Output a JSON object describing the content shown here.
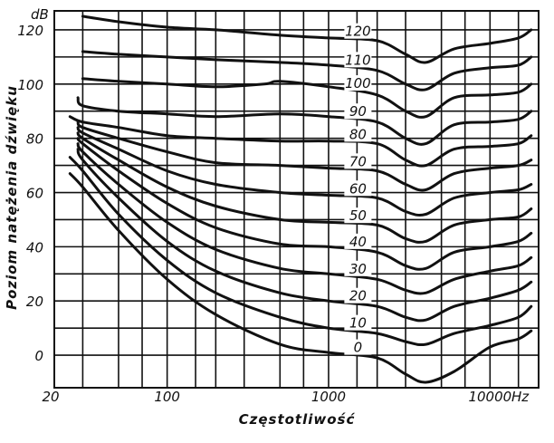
{
  "chart_data": {
    "type": "line",
    "xlabel": "Częstotliwość",
    "ylabel": "Poziom natężenia dźwięku",
    "x_unit": "Hz",
    "y_unit": "dB",
    "x_scale": "log",
    "xlim": [
      20,
      20000
    ],
    "ylim": [
      -12,
      127
    ],
    "grid": true,
    "x_ticks": [
      {
        "value": 20,
        "label": "20"
      },
      {
        "value": 100,
        "label": "100"
      },
      {
        "value": 1000,
        "label": "1000"
      },
      {
        "value": 10000,
        "label": "10000"
      }
    ],
    "x_gridlines": [
      20,
      30,
      50,
      70,
      100,
      150,
      200,
      300,
      500,
      700,
      1000,
      1500,
      2000,
      3000,
      5000,
      7000,
      10000,
      15000,
      20000
    ],
    "y_ticks": [
      {
        "value": 0,
        "label": "0"
      },
      {
        "value": 20,
        "label": "20"
      },
      {
        "value": 40,
        "label": "40"
      },
      {
        "value": 60,
        "label": "60"
      },
      {
        "value": 80,
        "label": "80"
      },
      {
        "value": 100,
        "label": "100"
      },
      {
        "value": 120,
        "label": "120"
      }
    ],
    "y_gridlines": [
      0,
      10,
      20,
      30,
      40,
      50,
      60,
      70,
      80,
      90,
      100,
      110,
      120
    ],
    "series": [
      {
        "name": "120",
        "label_at": 1500,
        "points": [
          [
            30,
            125
          ],
          [
            50,
            123
          ],
          [
            100,
            121
          ],
          [
            200,
            120
          ],
          [
            500,
            118
          ],
          [
            1000,
            117
          ],
          [
            2000,
            116
          ],
          [
            3000,
            111
          ],
          [
            4000,
            108
          ],
          [
            6000,
            113
          ],
          [
            10000,
            115
          ],
          [
            15000,
            117
          ],
          [
            18000,
            120
          ]
        ]
      },
      {
        "name": "110",
        "label_at": 1500,
        "points": [
          [
            30,
            112
          ],
          [
            50,
            111
          ],
          [
            100,
            110
          ],
          [
            200,
            109
          ],
          [
            500,
            108
          ],
          [
            1000,
            107
          ],
          [
            2000,
            105
          ],
          [
            3000,
            100
          ],
          [
            4000,
            98
          ],
          [
            6000,
            104
          ],
          [
            10000,
            106
          ],
          [
            15000,
            107
          ],
          [
            18000,
            110
          ]
        ]
      },
      {
        "name": "100",
        "label_at": 1500,
        "points": [
          [
            30,
            102
          ],
          [
            50,
            101
          ],
          [
            100,
            100
          ],
          [
            200,
            99
          ],
          [
            400,
            100
          ],
          [
            500,
            101
          ],
          [
            1000,
            99
          ],
          [
            2000,
            96
          ],
          [
            3000,
            90
          ],
          [
            4000,
            88
          ],
          [
            6000,
            95
          ],
          [
            10000,
            96
          ],
          [
            15000,
            97
          ],
          [
            18000,
            100
          ]
        ]
      },
      {
        "name": "90",
        "label_at": 1500,
        "points": [
          [
            28,
            95
          ],
          [
            30,
            92
          ],
          [
            50,
            90
          ],
          [
            100,
            89
          ],
          [
            200,
            88
          ],
          [
            500,
            89
          ],
          [
            1000,
            88
          ],
          [
            2000,
            86
          ],
          [
            3000,
            80
          ],
          [
            4000,
            78
          ],
          [
            6000,
            85
          ],
          [
            10000,
            86
          ],
          [
            15000,
            87
          ],
          [
            18000,
            90
          ]
        ]
      },
      {
        "name": "80",
        "label_at": 1500,
        "points": [
          [
            25,
            88
          ],
          [
            30,
            86
          ],
          [
            50,
            84
          ],
          [
            100,
            81
          ],
          [
            200,
            80
          ],
          [
            500,
            79
          ],
          [
            1000,
            79
          ],
          [
            2000,
            78
          ],
          [
            3000,
            72
          ],
          [
            4000,
            70
          ],
          [
            6000,
            76
          ],
          [
            10000,
            77
          ],
          [
            15000,
            78
          ],
          [
            18000,
            81
          ]
        ]
      },
      {
        "name": "70",
        "label_at": 1500,
        "points": [
          [
            28,
            86
          ],
          [
            30,
            84
          ],
          [
            50,
            80
          ],
          [
            100,
            75
          ],
          [
            200,
            71
          ],
          [
            500,
            70
          ],
          [
            1000,
            69
          ],
          [
            2000,
            68
          ],
          [
            3000,
            63
          ],
          [
            4000,
            61
          ],
          [
            6000,
            67
          ],
          [
            10000,
            69
          ],
          [
            15000,
            70
          ],
          [
            18000,
            72
          ]
        ]
      },
      {
        "name": "60",
        "label_at": 1500,
        "points": [
          [
            28,
            84
          ],
          [
            30,
            82
          ],
          [
            50,
            76
          ],
          [
            100,
            68
          ],
          [
            200,
            63
          ],
          [
            500,
            60
          ],
          [
            1000,
            59
          ],
          [
            2000,
            58
          ],
          [
            3000,
            53
          ],
          [
            4000,
            52
          ],
          [
            6000,
            58
          ],
          [
            10000,
            60
          ],
          [
            15000,
            61
          ],
          [
            18000,
            63
          ]
        ]
      },
      {
        "name": "50",
        "label_at": 1500,
        "points": [
          [
            28,
            82
          ],
          [
            30,
            80
          ],
          [
            50,
            72
          ],
          [
            100,
            62
          ],
          [
            200,
            55
          ],
          [
            500,
            50
          ],
          [
            1000,
            49
          ],
          [
            2000,
            48
          ],
          [
            3000,
            43
          ],
          [
            4000,
            42
          ],
          [
            6000,
            48
          ],
          [
            10000,
            50
          ],
          [
            15000,
            51
          ],
          [
            18000,
            54
          ]
        ]
      },
      {
        "name": "40",
        "label_at": 1500,
        "points": [
          [
            28,
            80
          ],
          [
            30,
            78
          ],
          [
            50,
            68
          ],
          [
            100,
            56
          ],
          [
            200,
            47
          ],
          [
            500,
            41
          ],
          [
            1000,
            40
          ],
          [
            2000,
            38
          ],
          [
            3000,
            33
          ],
          [
            4000,
            32
          ],
          [
            6000,
            38
          ],
          [
            10000,
            40
          ],
          [
            15000,
            42
          ],
          [
            18000,
            45
          ]
        ]
      },
      {
        "name": "30",
        "label_at": 1500,
        "points": [
          [
            28,
            78
          ],
          [
            30,
            75
          ],
          [
            50,
            63
          ],
          [
            100,
            49
          ],
          [
            200,
            39
          ],
          [
            500,
            32
          ],
          [
            1000,
            30
          ],
          [
            2000,
            28
          ],
          [
            3000,
            24
          ],
          [
            4000,
            23
          ],
          [
            6000,
            28
          ],
          [
            10000,
            31
          ],
          [
            15000,
            33
          ],
          [
            18000,
            36
          ]
        ]
      },
      {
        "name": "20",
        "label_at": 1500,
        "points": [
          [
            28,
            76
          ],
          [
            30,
            72
          ],
          [
            50,
            58
          ],
          [
            100,
            42
          ],
          [
            200,
            31
          ],
          [
            500,
            23
          ],
          [
            1000,
            20
          ],
          [
            2000,
            18
          ],
          [
            3000,
            14
          ],
          [
            4000,
            13
          ],
          [
            6000,
            18
          ],
          [
            10000,
            21
          ],
          [
            15000,
            24
          ],
          [
            18000,
            27
          ]
        ]
      },
      {
        "name": "10",
        "label_at": 1500,
        "points": [
          [
            25,
            73
          ],
          [
            30,
            68
          ],
          [
            50,
            52
          ],
          [
            100,
            35
          ],
          [
            200,
            23
          ],
          [
            500,
            14
          ],
          [
            1000,
            10
          ],
          [
            2000,
            8
          ],
          [
            3000,
            5
          ],
          [
            4000,
            4
          ],
          [
            6000,
            8
          ],
          [
            10000,
            11
          ],
          [
            15000,
            14
          ],
          [
            18000,
            18
          ]
        ]
      },
      {
        "name": "0",
        "label_at": 1500,
        "points": [
          [
            25,
            67
          ],
          [
            30,
            62
          ],
          [
            50,
            46
          ],
          [
            100,
            28
          ],
          [
            200,
            15
          ],
          [
            500,
            4
          ],
          [
            1000,
            1
          ],
          [
            2000,
            -1
          ],
          [
            3000,
            -7
          ],
          [
            4000,
            -10
          ],
          [
            6000,
            -6
          ],
          [
            10000,
            3
          ],
          [
            15000,
            6
          ],
          [
            18000,
            9
          ]
        ]
      }
    ]
  }
}
